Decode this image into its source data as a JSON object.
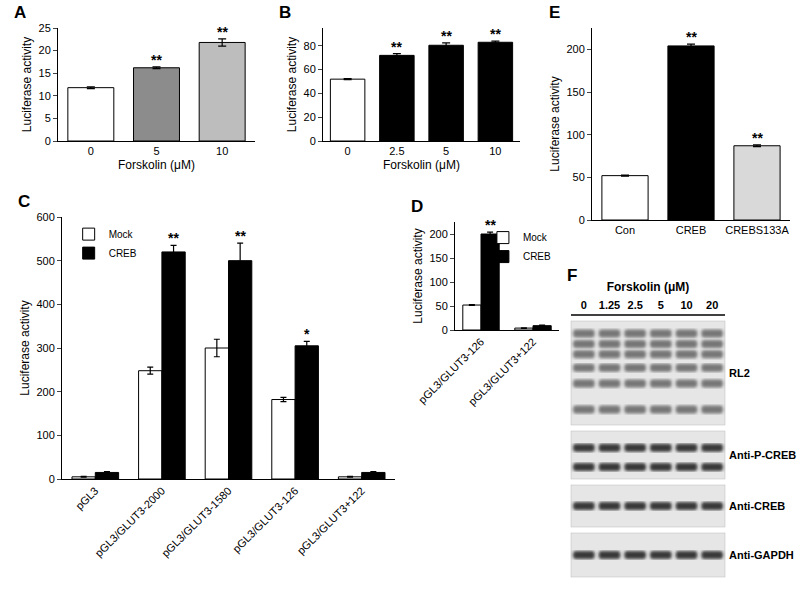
{
  "chart_data": [
    {
      "title": "A",
      "type": "bar",
      "categories": [
        "0",
        "5",
        "10"
      ],
      "values": [
        11.8,
        16.2,
        21.8
      ],
      "errors": [
        0.2,
        0.2,
        0.8
      ],
      "colors": [
        "#ffffff",
        "#8c8c8c",
        "#bdbdbd"
      ],
      "x_label": "Forskolin (μM)",
      "y_label": "Luciferase activity",
      "ylim": [
        0,
        25
      ],
      "yticks": [
        0,
        5,
        10,
        15,
        20,
        25
      ],
      "grid": false,
      "annotations": [
        {
          "x": "5",
          "text": "**"
        },
        {
          "x": "10",
          "text": "**"
        }
      ]
    },
    {
      "title": "B",
      "type": "bar",
      "categories": [
        "0",
        "2.5",
        "5",
        "10"
      ],
      "values": [
        52,
        72,
        80.5,
        83
      ],
      "errors": [
        0.5,
        1.5,
        2,
        1
      ],
      "colors": [
        "#ffffff",
        "#000000",
        "#000000",
        "#000000"
      ],
      "x_label": "Forskolin (μM)",
      "y_label": "Luciferase activity",
      "ylim": [
        0,
        95
      ],
      "yticks": [
        0,
        20,
        40,
        60,
        80
      ],
      "grid": false,
      "annotations": [
        {
          "x": "2.5",
          "text": "**"
        },
        {
          "x": "5",
          "text": "**"
        },
        {
          "x": "10",
          "text": "**"
        }
      ]
    },
    {
      "title": "C",
      "type": "bar",
      "categories": [
        "pGL3",
        "pGL3/GLUT3-2000",
        "pGL3/GLUT3-1580",
        "pGL3/GLUT3-126",
        "pGL3/GLUT3+122"
      ],
      "series": [
        {
          "name": "Mock",
          "color": "#ffffff",
          "values": [
            5,
            248,
            300,
            182,
            5
          ],
          "errors": [
            1,
            8,
            20,
            5,
            1
          ]
        },
        {
          "name": "CREB",
          "color": "#000000",
          "values": [
            15,
            520,
            500,
            305,
            15
          ],
          "errors": [
            2,
            15,
            40,
            10,
            2
          ]
        }
      ],
      "y_label": "Luciferase activity",
      "ylim": [
        0,
        600
      ],
      "yticks": [
        0,
        100,
        200,
        300,
        400,
        500,
        600
      ],
      "grid": false,
      "legend": "upper left",
      "annotations": [
        {
          "x": "pGL3/GLUT3-2000",
          "series": "CREB",
          "text": "**"
        },
        {
          "x": "pGL3/GLUT3-1580",
          "series": "CREB",
          "text": "**"
        },
        {
          "x": "pGL3/GLUT3-126",
          "series": "CREB",
          "text": "*"
        }
      ]
    },
    {
      "title": "D",
      "type": "bar",
      "categories": [
        "pGL3/GLUT3-126",
        "pGL3/GLUT3+122"
      ],
      "series": [
        {
          "name": "Mock",
          "color": "#ffffff",
          "values": [
            52,
            4
          ],
          "errors": [
            1,
            0.5
          ]
        },
        {
          "name": "CREB",
          "color": "#000000",
          "values": [
            200,
            9
          ],
          "errors": [
            4,
            1
          ]
        }
      ],
      "y_label": "Luciferase activity",
      "ylim": [
        0,
        225
      ],
      "yticks": [
        0,
        50,
        100,
        150,
        200
      ],
      "grid": false,
      "legend": "upper right",
      "annotations": [
        {
          "x": "pGL3/GLUT3-126",
          "series": "CREB",
          "text": "**"
        }
      ]
    },
    {
      "title": "E",
      "type": "bar",
      "categories": [
        "Con",
        "CREB",
        "CREBS133A"
      ],
      "values": [
        52,
        204,
        87
      ],
      "errors": [
        0.5,
        2,
        1
      ],
      "colors": [
        "#ffffff",
        "#000000",
        "#d9d9d9"
      ],
      "y_label": "Luciferase activity",
      "ylim": [
        0,
        225
      ],
      "yticks": [
        0,
        50,
        100,
        150,
        200
      ],
      "grid": false,
      "annotations": [
        {
          "x": "CREB",
          "text": "**"
        },
        {
          "x": "CREBS133A",
          "text": "**"
        }
      ]
    }
  ],
  "blot": {
    "title": "F",
    "header": "Forskolin (μM)",
    "lanes": [
      "0",
      "1.25",
      "2.5",
      "5",
      "10",
      "20"
    ],
    "rows": [
      "RL2",
      "Anti-P-CREB",
      "Anti-CREB",
      "Anti-GAPDH"
    ]
  }
}
